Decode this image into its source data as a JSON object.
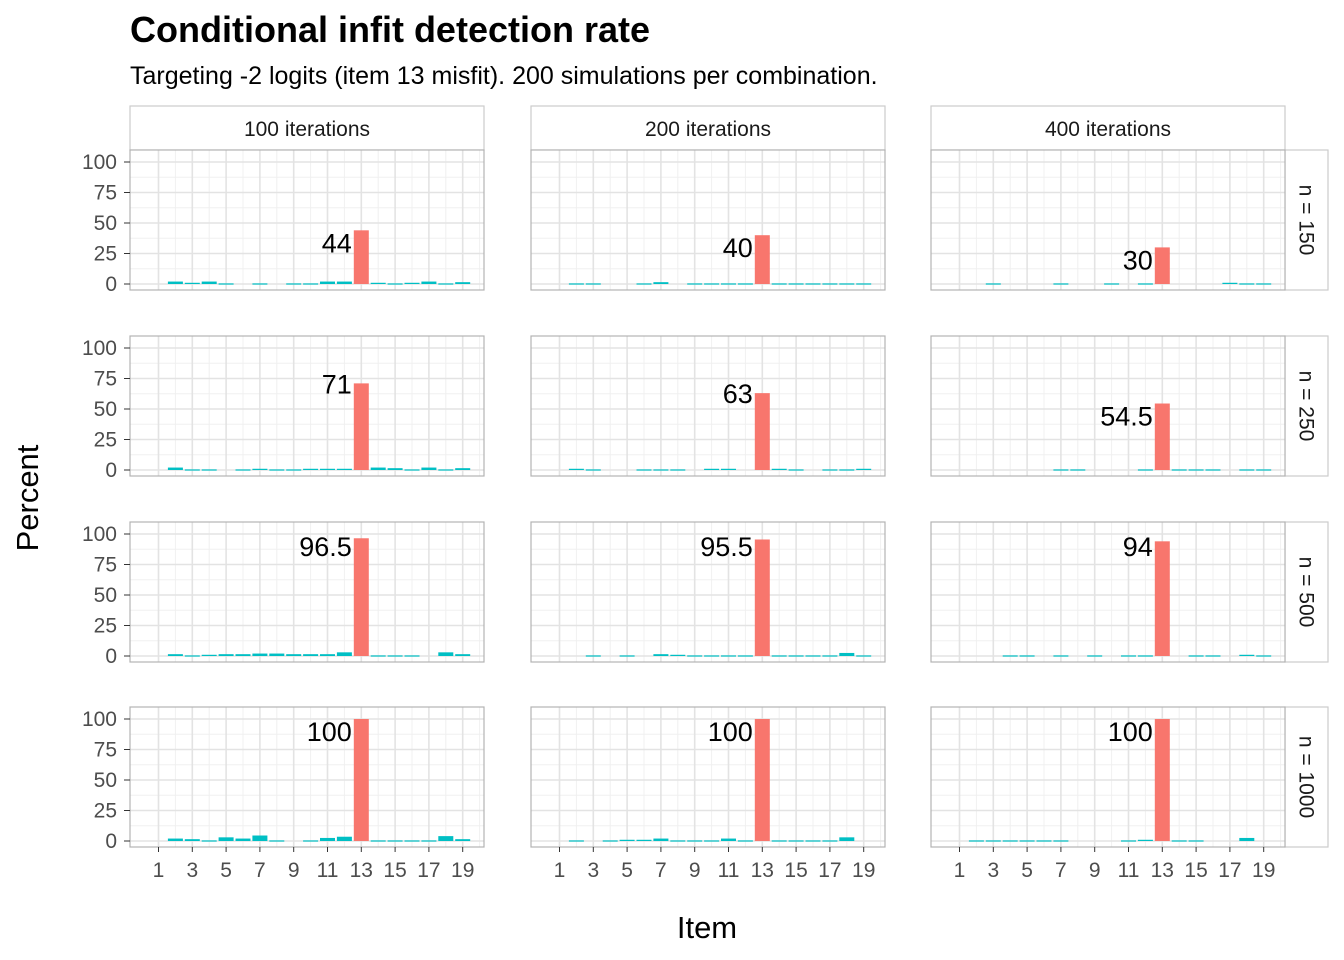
{
  "chart_data": {
    "type": "bar",
    "title": "Conditional infit detection rate",
    "subtitle": "Targeting -2 logits (item 13 misfit). 200 simulations per combination.",
    "xlabel": "Item",
    "ylabel": "Percent",
    "ylim": [
      0,
      100
    ],
    "y_ticks": [
      "0",
      "25",
      "50",
      "75",
      "100"
    ],
    "x_ticks": [
      "1",
      "3",
      "5",
      "7",
      "9",
      "11",
      "13",
      "15",
      "17",
      "19"
    ],
    "items": [
      1,
      2,
      3,
      4,
      5,
      6,
      7,
      8,
      9,
      10,
      11,
      12,
      13,
      14,
      15,
      16,
      17,
      18,
      19,
      20
    ],
    "highlight_item": 13,
    "colors": {
      "highlight": "#F8766D",
      "other": "#00BFC4"
    },
    "grid": true,
    "legend": "none",
    "columns": [
      "100 iterations",
      "200 iterations",
      "400 iterations"
    ],
    "rows": [
      "n = 150",
      "n = 250",
      "n = 500",
      "n = 1000"
    ],
    "panels": [
      {
        "row": 0,
        "col": 0,
        "label": "44",
        "values": [
          0,
          2,
          1,
          2,
          0.5,
          0,
          0.5,
          0,
          0.5,
          0.5,
          2,
          2,
          44,
          1,
          0.5,
          1,
          2,
          0.5,
          1.5,
          0
        ]
      },
      {
        "row": 0,
        "col": 1,
        "label": "40",
        "values": [
          0,
          0.5,
          0.5,
          0,
          0,
          0.5,
          1.5,
          0,
          0.5,
          0.5,
          0.5,
          0.5,
          40,
          0.5,
          0.5,
          0.5,
          0.5,
          0.5,
          0.5,
          0
        ]
      },
      {
        "row": 0,
        "col": 2,
        "label": "30",
        "values": [
          0,
          0,
          0.5,
          0,
          0,
          0,
          0.5,
          0,
          0,
          0.5,
          0,
          0.5,
          30,
          0,
          0,
          0,
          1,
          0.5,
          0.5,
          0
        ]
      },
      {
        "row": 1,
        "col": 0,
        "label": "71",
        "values": [
          0,
          2,
          0.5,
          0.5,
          0,
          0.5,
          1,
          0.5,
          0.5,
          1,
          1,
          1,
          71,
          2,
          1.5,
          0.5,
          2,
          0.5,
          1.5,
          0
        ]
      },
      {
        "row": 1,
        "col": 1,
        "label": "63",
        "values": [
          0,
          1,
          0.5,
          0,
          0,
          0.5,
          0.5,
          0.5,
          0,
          1,
          1,
          0,
          63,
          1,
          0.5,
          0,
          0.5,
          0.5,
          1,
          0
        ]
      },
      {
        "row": 1,
        "col": 2,
        "label": "54.5",
        "values": [
          0,
          0,
          0,
          0,
          0,
          0,
          0.5,
          0.5,
          0,
          0,
          0,
          0.5,
          54.5,
          0.5,
          0.5,
          0.5,
          0,
          0.5,
          0.5,
          0
        ]
      },
      {
        "row": 2,
        "col": 0,
        "label": "96.5",
        "values": [
          0,
          1.5,
          0.5,
          1,
          1.5,
          1.5,
          2,
          2,
          1.5,
          1.5,
          1.5,
          3,
          96.5,
          0.5,
          0.5,
          0.5,
          0,
          3,
          1.5,
          0
        ]
      },
      {
        "row": 2,
        "col": 1,
        "label": "95.5",
        "values": [
          0,
          0,
          0.5,
          0,
          0.5,
          0,
          1.5,
          1,
          0.5,
          0.5,
          0.5,
          0.5,
          95.5,
          0.5,
          0.5,
          0.5,
          0.5,
          2.5,
          0.5,
          0
        ]
      },
      {
        "row": 2,
        "col": 2,
        "label": "94",
        "values": [
          0,
          0,
          0,
          0.5,
          0.5,
          0,
          0.5,
          0,
          0.5,
          0,
          0.5,
          0.5,
          94,
          0,
          0.5,
          0.5,
          0,
          1,
          0.5,
          0
        ]
      },
      {
        "row": 3,
        "col": 0,
        "label": "100",
        "values": [
          0,
          2,
          1.5,
          0.5,
          3,
          2,
          4.5,
          0.5,
          0,
          0.5,
          2.5,
          3.5,
          100,
          0.5,
          0.5,
          0.5,
          0.5,
          4,
          1.5,
          0
        ]
      },
      {
        "row": 3,
        "col": 1,
        "label": "100",
        "values": [
          0,
          0.5,
          0,
          0.5,
          1,
          1,
          2,
          0.5,
          0.5,
          0.5,
          2,
          0.5,
          100,
          0.5,
          0.5,
          0.5,
          0.5,
          3,
          0,
          0
        ]
      },
      {
        "row": 3,
        "col": 2,
        "label": "100",
        "values": [
          0,
          0.5,
          0.5,
          0.5,
          0.5,
          0.5,
          0.5,
          0,
          0,
          0,
          0.5,
          1,
          100,
          0.5,
          0.5,
          0,
          0,
          2.5,
          0,
          0
        ]
      }
    ]
  }
}
